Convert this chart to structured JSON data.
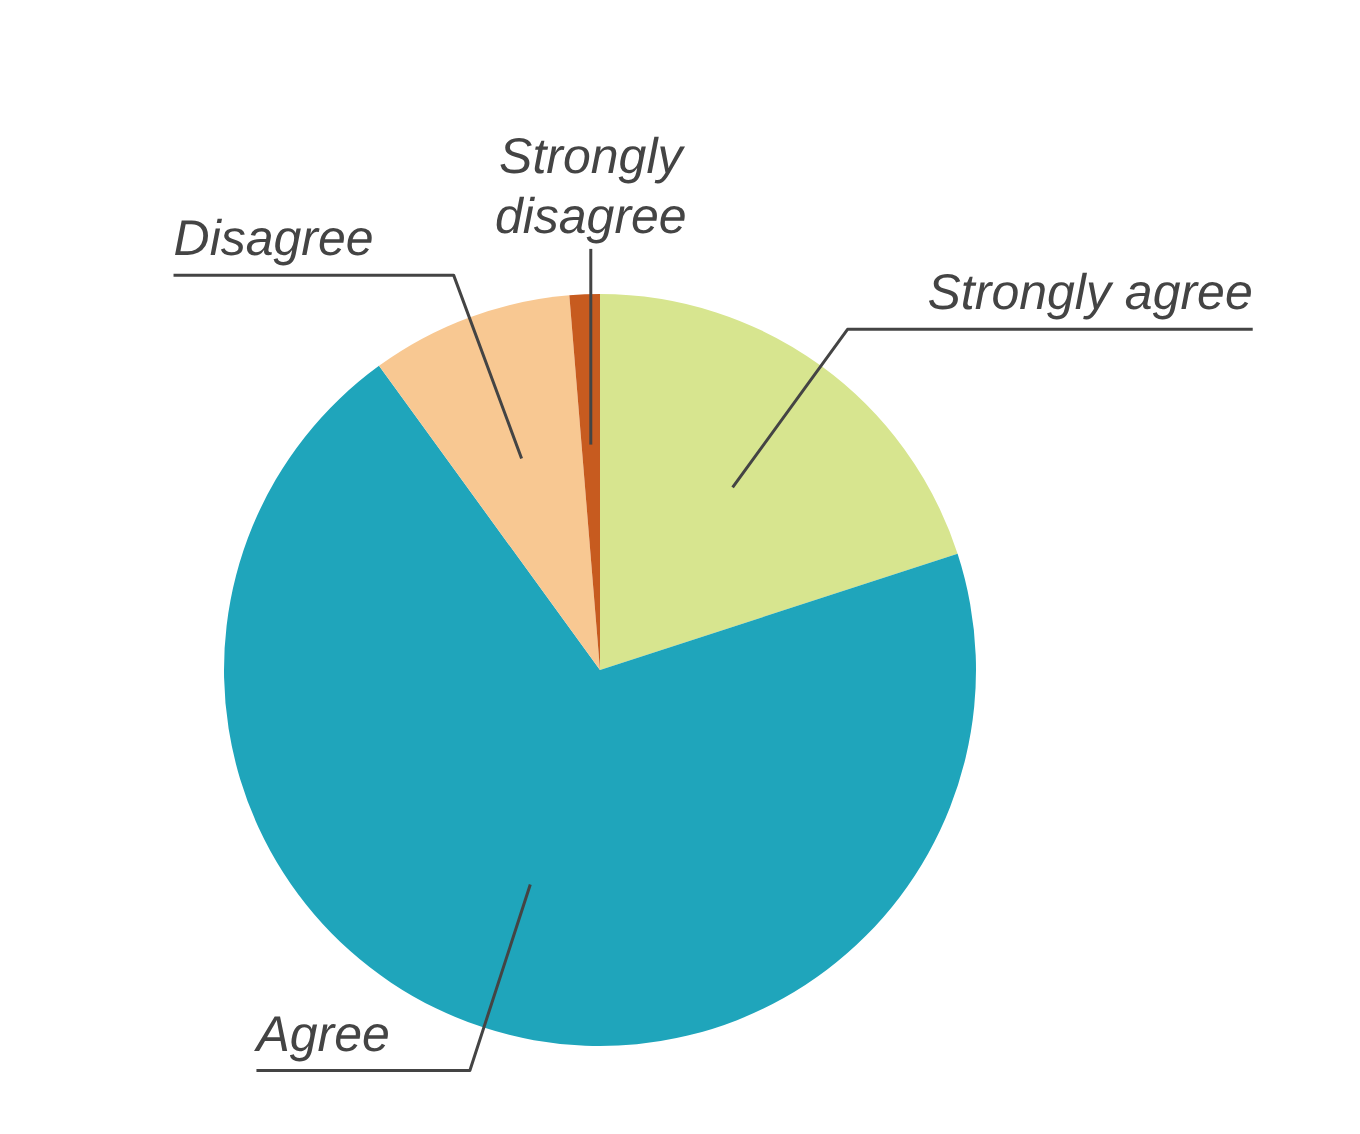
{
  "chart_data": {
    "type": "pie",
    "categories": [
      "Strongly agree",
      "Agree",
      "Disagree",
      "Strongly disagree"
    ],
    "values": [
      20,
      70,
      8.7,
      1.3
    ],
    "colors": [
      "#d7e58f",
      "#1fa5bb",
      "#f8c892",
      "#c75b1f"
    ]
  }
}
